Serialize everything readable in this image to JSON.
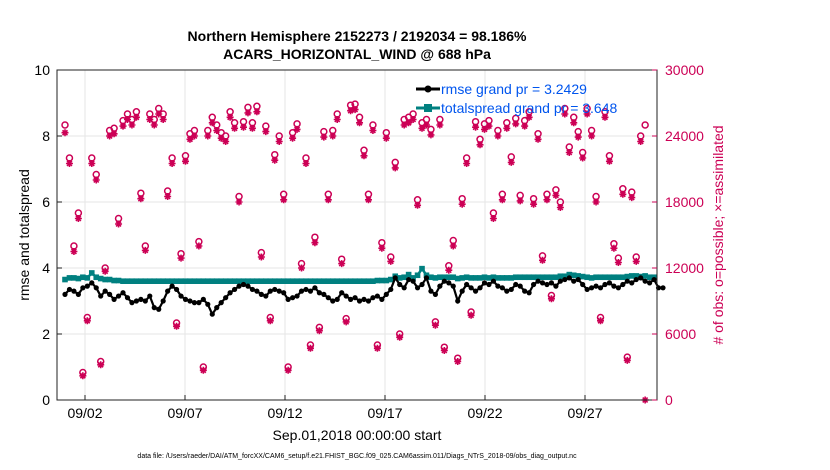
{
  "chart_data": {
    "type": "line",
    "title_line1": "Northern Hemisphere 2152273 / 2192034 = 98.186%",
    "title_line2": "ACARS_HORIZONTAL_WIND @ 688 hPa",
    "ylabel": "rmse and totalspread",
    "ylabel_right": "# of obs: o=possible; ×=assimilated",
    "xlabel": "Sep.01,2018 00:00:00 start",
    "footnote": "data file: /Users/raeder/DAI/ATM_forcXX/CAM6_setup/f.e21.FHIST_BGC.f09_025.CAM6assim.011/Diags_NTrS_2018-09/obs_diag_output.nc",
    "ylim": [
      0,
      10
    ],
    "ylim_right": [
      0,
      30000
    ],
    "xlim": [
      0.6,
      30.6
    ],
    "yticks": [
      "0",
      "2",
      "4",
      "6",
      "8",
      "10"
    ],
    "yticks_right": [
      "0",
      "6000",
      "12000",
      "18000",
      "24000",
      "30000"
    ],
    "xticks": [
      {
        "day": 2,
        "label": "09/02"
      },
      {
        "day": 7,
        "label": "09/07"
      },
      {
        "day": 12,
        "label": "09/12"
      },
      {
        "day": 17,
        "label": "09/17"
      },
      {
        "day": 22,
        "label": "09/22"
      },
      {
        "day": 27,
        "label": "09/27"
      }
    ],
    "legend": [
      {
        "label": "rmse grand pr = 3.2429",
        "color": "#000000"
      },
      {
        "label": "totalspread grand pr = 3.648",
        "color": "#008080"
      }
    ],
    "colors": {
      "rmse": "#000000",
      "spread": "#008080",
      "obs": "#cc0055",
      "legend_text": "#0055ee"
    },
    "series": [
      {
        "name": "rmse",
        "values": [
          3.2,
          3.35,
          3.3,
          3.2,
          3.4,
          3.45,
          3.55,
          3.4,
          3.15,
          3.3,
          3.2,
          3.05,
          3.15,
          3.25,
          3.1,
          2.95,
          3.0,
          3.05,
          3.0,
          3.15,
          2.8,
          2.75,
          3.0,
          3.3,
          3.45,
          3.35,
          3.15,
          3.05,
          3.0,
          2.95,
          2.95,
          3.05,
          2.9,
          2.6,
          2.8,
          2.95,
          3.1,
          3.25,
          3.35,
          3.45,
          3.5,
          3.45,
          3.35,
          3.3,
          3.2,
          3.15,
          3.3,
          3.35,
          3.3,
          3.25,
          3.05,
          3.1,
          3.15,
          3.3,
          3.35,
          3.3,
          3.4,
          3.25,
          3.2,
          3.1,
          3.0,
          3.05,
          3.25,
          3.15,
          3.05,
          3.1,
          3.0,
          3.05,
          3.0,
          3.1,
          3.15,
          3.05,
          3.2,
          3.35,
          3.7,
          3.5,
          3.4,
          3.65,
          3.6,
          3.4,
          3.5,
          3.7,
          3.3,
          3.2,
          3.45,
          3.6,
          3.55,
          3.45,
          3.0,
          3.3,
          3.5,
          3.4,
          3.3,
          3.4,
          3.55,
          3.5,
          3.6,
          3.45,
          3.4,
          3.3,
          3.35,
          3.5,
          3.45,
          3.3,
          3.25,
          3.5,
          3.6,
          3.55,
          3.5,
          3.55,
          3.45,
          3.6,
          3.65,
          3.7,
          3.6,
          3.65,
          3.5,
          3.35,
          3.4,
          3.45,
          3.4,
          3.5,
          3.55,
          3.45,
          3.4,
          3.5,
          3.6,
          3.55,
          3.65,
          3.7,
          3.6,
          3.55,
          3.65,
          3.4,
          3.4
        ]
      },
      {
        "name": "totalspread",
        "values": [
          3.65,
          3.7,
          3.7,
          3.68,
          3.72,
          3.7,
          3.85,
          3.72,
          3.68,
          3.65,
          3.65,
          3.62,
          3.62,
          3.6,
          3.6,
          3.6,
          3.6,
          3.6,
          3.6,
          3.6,
          3.6,
          3.6,
          3.6,
          3.6,
          3.6,
          3.6,
          3.6,
          3.6,
          3.6,
          3.6,
          3.6,
          3.6,
          3.6,
          3.6,
          3.6,
          3.6,
          3.6,
          3.6,
          3.6,
          3.6,
          3.6,
          3.6,
          3.6,
          3.6,
          3.6,
          3.6,
          3.6,
          3.6,
          3.6,
          3.6,
          3.6,
          3.6,
          3.6,
          3.6,
          3.6,
          3.6,
          3.6,
          3.6,
          3.6,
          3.6,
          3.6,
          3.6,
          3.6,
          3.6,
          3.6,
          3.6,
          3.6,
          3.6,
          3.6,
          3.6,
          3.62,
          3.62,
          3.62,
          3.65,
          3.75,
          3.7,
          3.72,
          3.8,
          3.7,
          3.78,
          3.98,
          3.78,
          3.72,
          3.7,
          3.72,
          3.72,
          3.72,
          3.72,
          3.68,
          3.7,
          3.72,
          3.7,
          3.7,
          3.7,
          3.72,
          3.7,
          3.72,
          3.7,
          3.7,
          3.7,
          3.7,
          3.72,
          3.72,
          3.72,
          3.72,
          3.72,
          3.72,
          3.72,
          3.72,
          3.72,
          3.72,
          3.75,
          3.75,
          3.8,
          3.78,
          3.76,
          3.74,
          3.72,
          3.7,
          3.72,
          3.72,
          3.72,
          3.72,
          3.72,
          3.72,
          3.72,
          3.74,
          3.76,
          3.76,
          3.74,
          3.76,
          3.72,
          3.72
        ]
      },
      {
        "name": "possible_obs",
        "values": [
          25000,
          22000,
          14000,
          17000,
          2500,
          7500,
          22000,
          20500,
          3500,
          12000,
          24500,
          24700,
          16500,
          25400,
          26000,
          25500,
          26200,
          18800,
          14000,
          26000,
          25500,
          26500,
          26000,
          19000,
          22000,
          7000,
          13300,
          22200,
          24200,
          24500,
          14400,
          3000,
          24500,
          25700,
          25000,
          24300,
          24000,
          26200,
          25200,
          18500,
          25300,
          26600,
          25200,
          26700,
          13400,
          24900,
          7500,
          22300,
          24000,
          18700,
          3000,
          24300,
          25100,
          12400,
          22000,
          5000,
          14800,
          6600,
          24400,
          18700,
          24500,
          26000,
          12800,
          7400,
          26800,
          26900,
          25700,
          22700,
          18700,
          25000,
          5000,
          14300,
          24300,
          13000,
          21600,
          6000,
          25500,
          25700,
          26000,
          18200,
          25200,
          25500,
          24600,
          7100,
          25500,
          4800,
          12200,
          14500,
          3800,
          18300,
          22000,
          8000,
          25300,
          23700,
          25100,
          25400,
          17000,
          24500,
          18700,
          25200,
          22100,
          25600,
          18600,
          25400,
          26200,
          18300,
          24200,
          13100,
          18700,
          9500,
          19100,
          18000,
          26500,
          23000,
          25700,
          24400,
          22500,
          26500,
          24500,
          18500,
          7500,
          26200,
          22200,
          14200,
          12900,
          19200,
          3900,
          18900,
          13000,
          24000,
          25000
        ]
      },
      {
        "name": "assimilated_obs",
        "values": [
          24300,
          21500,
          13500,
          16500,
          2200,
          7200,
          21500,
          20000,
          3200,
          11700,
          24000,
          24200,
          16000,
          24900,
          25500,
          25000,
          25700,
          18300,
          13600,
          25500,
          25000,
          26000,
          25500,
          18500,
          21500,
          6700,
          12900,
          21700,
          23700,
          24000,
          14000,
          2700,
          24000,
          25200,
          24500,
          23800,
          23500,
          25700,
          24700,
          18000,
          24800,
          26100,
          24700,
          26200,
          13000,
          24400,
          7200,
          21800,
          23500,
          18200,
          2700,
          23800,
          24600,
          12000,
          21500,
          4700,
          14300,
          6300,
          23900,
          18200,
          24000,
          25500,
          12400,
          7100,
          26300,
          26400,
          25200,
          22200,
          18200,
          24500,
          4700,
          13800,
          23800,
          12600,
          21100,
          5700,
          25000,
          25200,
          25500,
          17700,
          24700,
          25000,
          24100,
          6800,
          25000,
          4500,
          11800,
          14000,
          3500,
          17800,
          21500,
          7700,
          24800,
          23200,
          24600,
          24900,
          16500,
          24000,
          18200,
          24700,
          21600,
          25100,
          18100,
          24900,
          25700,
          17800,
          23700,
          12700,
          18200,
          9200,
          18600,
          17500,
          26000,
          22500,
          25200,
          23900,
          22000,
          26000,
          24000,
          18000,
          7200,
          25700,
          21700,
          13800,
          12500,
          18700,
          3600,
          18400,
          12600,
          23500,
          0
        ]
      }
    ]
  }
}
